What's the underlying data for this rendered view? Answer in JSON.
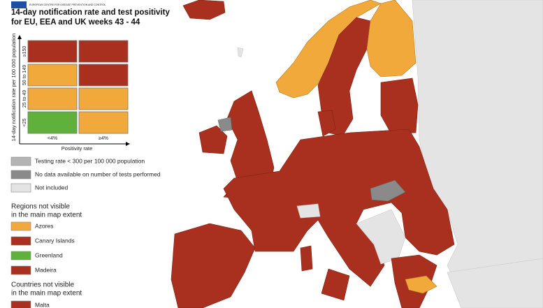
{
  "logo_text": "EUROPEAN CENTRE FOR DISEASE PREVENTION AND CONTROL",
  "title": [
    "14-day notification rate and test positivity",
    "for EU, EEA and UK weeks 43 - 44"
  ],
  "matrix": {
    "y_label": "14-day notification rate per 100 000 population",
    "rows": [
      {
        "label": "≥150",
        "colors": [
          "#a9301e",
          "#a9301e"
        ]
      },
      {
        "label": "50 to 149",
        "colors": [
          "#f2a93b",
          "#a9301e"
        ]
      },
      {
        "label": "25 to 49",
        "colors": [
          "#f2a93b",
          "#f2a93b"
        ]
      },
      {
        "label": "<25",
        "colors": [
          "#5fb13b",
          "#f2a93b"
        ]
      }
    ],
    "columns": [
      "<4%",
      "≥4%"
    ],
    "x_label": "Positivity rate"
  },
  "legend": [
    {
      "label": "Testing rate < 300 per 100 000 population",
      "color": "#b4b4b4"
    },
    {
      "label": "No data available on number of tests performed",
      "color": "#8a8a8a"
    },
    {
      "label": "Not included",
      "color": "#e4e4e4"
    }
  ],
  "regions": {
    "heading": [
      "Regions not visible",
      "in the main map extent"
    ],
    "items": [
      {
        "label": "Azores",
        "color": "#f2a93b"
      },
      {
        "label": "Canary Islands",
        "color": "#a9301e"
      },
      {
        "label": "Greenland",
        "color": "#5fb13b"
      },
      {
        "label": "Madeira",
        "color": "#a9301e"
      }
    ]
  },
  "countries": {
    "heading": [
      "Countries not visible",
      "in the main map extent"
    ],
    "items": [
      {
        "label": "Malta",
        "color": "#a9301e"
      }
    ]
  }
}
